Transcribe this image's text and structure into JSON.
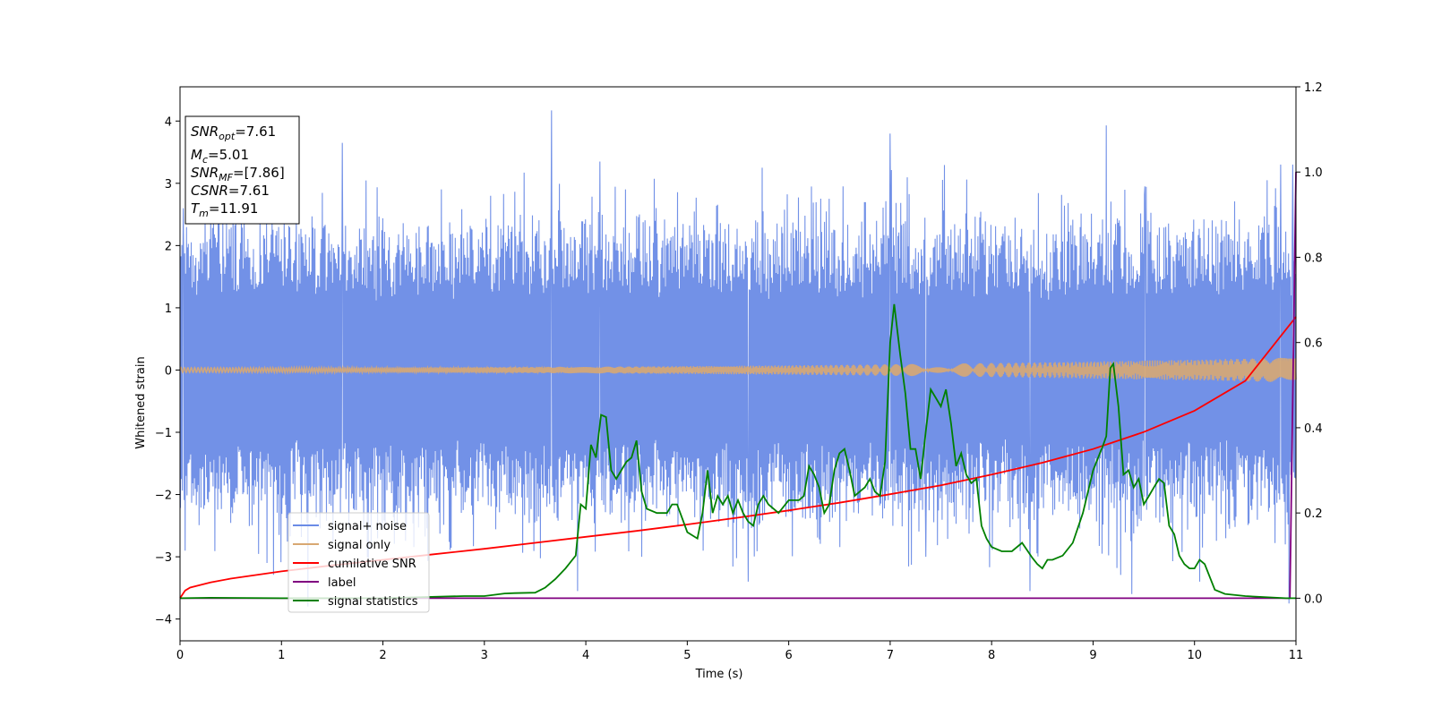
{
  "chart_data": {
    "type": "line",
    "xlabel": "Time (s)",
    "ylabel": "Whitened strain",
    "xlim": [
      0,
      11
    ],
    "ylim": [
      -4.35,
      4.55
    ],
    "y2lim": [
      -0.1,
      1.2
    ],
    "x_ticks": [
      "0",
      "1",
      "2",
      "3",
      "4",
      "5",
      "6",
      "7",
      "8",
      "9",
      "10",
      "11"
    ],
    "y_ticks": [
      -4,
      -3,
      -2,
      -1,
      0,
      1,
      2,
      3,
      4
    ],
    "y_tick_labels": [
      "−4",
      "−3",
      "−2",
      "−1",
      "0",
      "1",
      "2",
      "3",
      "4"
    ],
    "y2_ticks": [
      0.0,
      0.2,
      0.4,
      0.6,
      0.8,
      1.0,
      1.2
    ],
    "y2_tick_labels": [
      "0.0",
      "0.2",
      "0.4",
      "0.6",
      "0.8",
      "1.0",
      "1.2"
    ],
    "grid": false,
    "legend_position": "lower-left",
    "info_box": {
      "snr_opt": {
        "sym": "SNR",
        "sub": "opt",
        "val": "=7.61"
      },
      "mc": {
        "sym": "M",
        "sub": "c",
        "val": "=5.01"
      },
      "snr_mf": {
        "sym": "SNR",
        "sub": "MF",
        "val": "=[7.86]"
      },
      "csnr": {
        "sym": "CSNR",
        "val": "=7.61"
      },
      "tm": {
        "sym": "T",
        "sub": "m",
        "val": "=11.91"
      }
    },
    "series": [
      {
        "name": "signal+ noise",
        "color": "#6a8be6",
        "axis": "left",
        "description_only": true,
        "envelope_high_range": [
          2.0,
          2.6
        ],
        "envelope_low_range": [
          -2.0,
          -2.6
        ],
        "spikes_high": [
          [
            0.03,
            2.6
          ],
          [
            0.33,
            2.65
          ],
          [
            1.6,
            3.65
          ],
          [
            3.66,
            4.17
          ],
          [
            4.14,
            3.35
          ],
          [
            5.74,
            3.25
          ],
          [
            7.0,
            3.8
          ],
          [
            9.13,
            3.93
          ],
          [
            9.51,
            2.95
          ],
          [
            10.85,
            3.3
          ],
          [
            10.97,
            3.3
          ]
        ],
        "spikes_low": [
          [
            0.05,
            -2.9
          ],
          [
            1.26,
            -3.8
          ],
          [
            3.92,
            -3.55
          ],
          [
            4.55,
            -3.0
          ],
          [
            5.6,
            -3.4
          ],
          [
            7.35,
            -3.0
          ],
          [
            8.38,
            -3.55
          ],
          [
            9.38,
            -3.6
          ],
          [
            10.05,
            -3.4
          ],
          [
            10.93,
            -3.75
          ]
        ]
      },
      {
        "name": "signal only",
        "color": "#d8a872",
        "axis": "left",
        "amplitude_start": 0.04,
        "amplitude_end": 0.2
      },
      {
        "name": "cumilative SNR",
        "color": "#ff0000",
        "axis": "right",
        "x": [
          0,
          0.05,
          0.1,
          0.3,
          0.5,
          1,
          1.5,
          2,
          2.5,
          3,
          3.5,
          4,
          4.5,
          5,
          5.5,
          6,
          6.5,
          7,
          7.5,
          8,
          8.5,
          9,
          9.5,
          10,
          10.5,
          11
        ],
        "y": [
          0.0,
          0.018,
          0.025,
          0.037,
          0.046,
          0.063,
          0.077,
          0.09,
          0.103,
          0.116,
          0.13,
          0.144,
          0.158,
          0.173,
          0.189,
          0.206,
          0.224,
          0.244,
          0.265,
          0.29,
          0.318,
          0.35,
          0.39,
          0.44,
          0.51,
          0.66
        ]
      },
      {
        "name": "label",
        "color": "#800080",
        "axis": "right",
        "x": [
          0,
          10.94,
          11.0
        ],
        "y": [
          0.0,
          0.0,
          1.0
        ]
      },
      {
        "name": "signal statistics",
        "color": "#008000",
        "axis": "right",
        "x": [
          0,
          0.3,
          1,
          2,
          2.6,
          2.8,
          3,
          3.2,
          3.3,
          3.5,
          3.6,
          3.7,
          3.8,
          3.9,
          3.95,
          4.0,
          4.05,
          4.1,
          4.15,
          4.2,
          4.25,
          4.3,
          4.35,
          4.4,
          4.45,
          4.5,
          4.55,
          4.6,
          4.7,
          4.8,
          4.85,
          4.9,
          5.0,
          5.1,
          5.15,
          5.2,
          5.25,
          5.3,
          5.35,
          5.4,
          5.45,
          5.5,
          5.55,
          5.6,
          5.65,
          5.7,
          5.75,
          5.8,
          5.9,
          6.0,
          6.05,
          6.1,
          6.15,
          6.2,
          6.25,
          6.3,
          6.35,
          6.4,
          6.45,
          6.5,
          6.55,
          6.6,
          6.65,
          6.7,
          6.75,
          6.8,
          6.85,
          6.9,
          6.95,
          7.0,
          7.04,
          7.1,
          7.15,
          7.2,
          7.25,
          7.3,
          7.35,
          7.4,
          7.45,
          7.5,
          7.55,
          7.6,
          7.65,
          7.7,
          7.75,
          7.8,
          7.85,
          7.9,
          7.95,
          8.0,
          8.1,
          8.2,
          8.3,
          8.4,
          8.45,
          8.5,
          8.55,
          8.6,
          8.7,
          8.8,
          8.9,
          9.0,
          9.1,
          9.13,
          9.17,
          9.2,
          9.25,
          9.3,
          9.35,
          9.4,
          9.45,
          9.5,
          9.55,
          9.6,
          9.65,
          9.7,
          9.75,
          9.8,
          9.85,
          9.9,
          9.95,
          10.0,
          10.05,
          10.1,
          10.2,
          10.3,
          10.5,
          10.9,
          11.0
        ],
        "y": [
          0.0,
          0.001,
          0.0,
          0.0,
          0.004,
          0.005,
          0.005,
          0.011,
          0.012,
          0.013,
          0.025,
          0.045,
          0.07,
          0.1,
          0.22,
          0.21,
          0.36,
          0.33,
          0.43,
          0.425,
          0.3,
          0.28,
          0.3,
          0.32,
          0.33,
          0.37,
          0.25,
          0.21,
          0.2,
          0.2,
          0.22,
          0.22,
          0.155,
          0.14,
          0.2,
          0.3,
          0.2,
          0.24,
          0.22,
          0.24,
          0.2,
          0.23,
          0.2,
          0.18,
          0.17,
          0.22,
          0.24,
          0.22,
          0.2,
          0.23,
          0.23,
          0.23,
          0.24,
          0.31,
          0.29,
          0.26,
          0.2,
          0.22,
          0.3,
          0.34,
          0.35,
          0.3,
          0.24,
          0.25,
          0.26,
          0.28,
          0.25,
          0.24,
          0.32,
          0.6,
          0.69,
          0.57,
          0.48,
          0.35,
          0.35,
          0.28,
          0.39,
          0.49,
          0.47,
          0.45,
          0.49,
          0.41,
          0.31,
          0.34,
          0.29,
          0.27,
          0.28,
          0.17,
          0.14,
          0.12,
          0.11,
          0.11,
          0.13,
          0.095,
          0.08,
          0.07,
          0.09,
          0.09,
          0.1,
          0.13,
          0.2,
          0.3,
          0.36,
          0.38,
          0.54,
          0.55,
          0.45,
          0.29,
          0.3,
          0.26,
          0.28,
          0.22,
          0.24,
          0.26,
          0.28,
          0.27,
          0.17,
          0.15,
          0.1,
          0.08,
          0.07,
          0.07,
          0.09,
          0.08,
          0.02,
          0.01,
          0.005,
          0.0,
          0.0
        ]
      }
    ]
  }
}
